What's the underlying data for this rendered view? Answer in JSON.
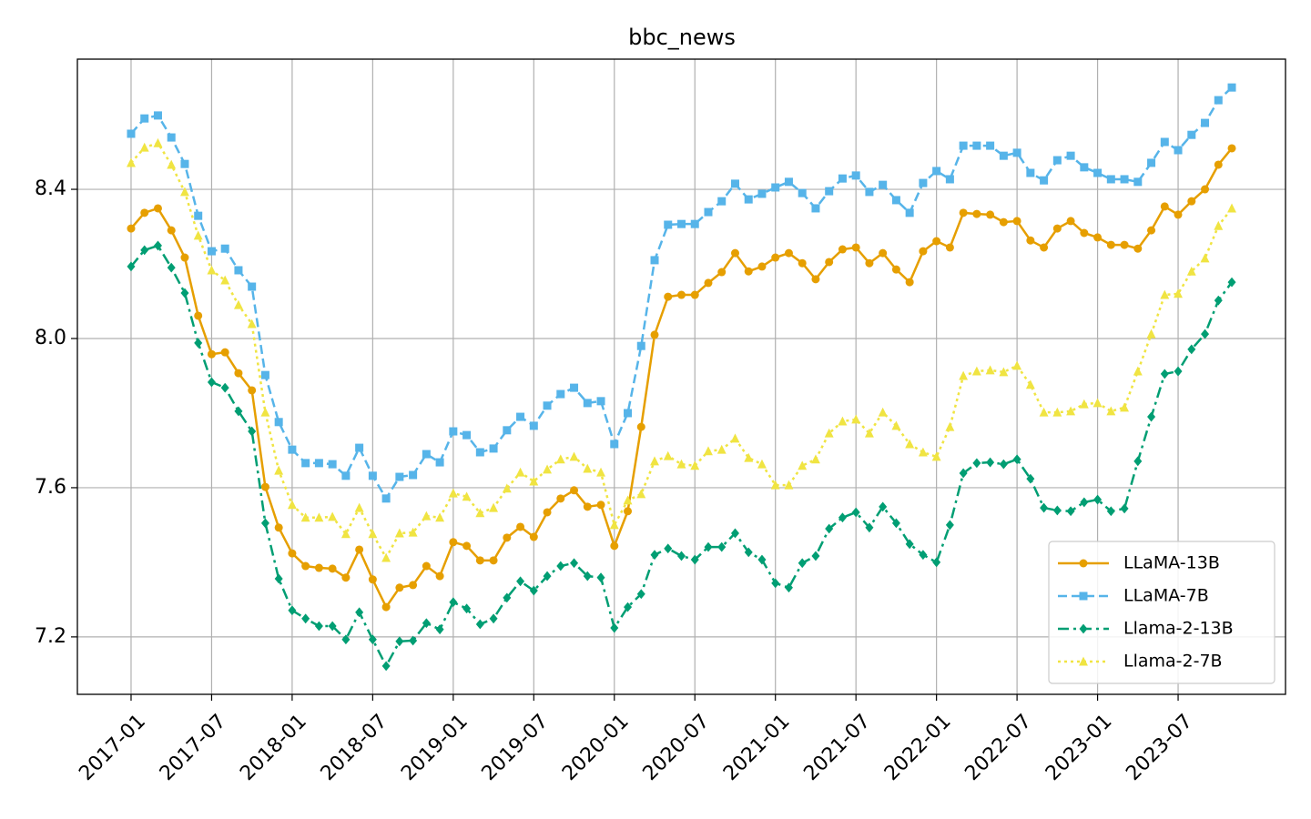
{
  "chart_data": {
    "type": "line",
    "title": "bbc_news",
    "x": [
      "2017-01",
      "2017-02",
      "2017-03",
      "2017-04",
      "2017-05",
      "2017-06",
      "2017-07",
      "2017-08",
      "2017-09",
      "2017-10",
      "2017-11",
      "2017-12",
      "2018-01",
      "2018-02",
      "2018-03",
      "2018-04",
      "2018-05",
      "2018-06",
      "2018-07",
      "2018-08",
      "2018-09",
      "2018-10",
      "2018-11",
      "2018-12",
      "2019-01",
      "2019-02",
      "2019-03",
      "2019-04",
      "2019-05",
      "2019-06",
      "2019-07",
      "2019-08",
      "2019-09",
      "2019-10",
      "2019-11",
      "2019-12",
      "2020-01",
      "2020-02",
      "2020-03",
      "2020-04",
      "2020-05",
      "2020-06",
      "2020-07",
      "2020-08",
      "2020-09",
      "2020-10",
      "2020-11",
      "2020-12",
      "2021-01",
      "2021-02",
      "2021-03",
      "2021-04",
      "2021-05",
      "2021-06",
      "2021-07",
      "2021-08",
      "2021-09",
      "2021-10",
      "2021-11",
      "2021-12",
      "2022-01",
      "2022-02",
      "2022-03",
      "2022-04",
      "2022-05",
      "2022-06",
      "2022-07",
      "2022-08",
      "2022-09",
      "2022-10",
      "2022-11",
      "2022-12",
      "2023-01",
      "2023-02",
      "2023-03",
      "2023-04",
      "2023-05",
      "2023-06",
      "2023-07",
      "2023-08",
      "2023-09",
      "2023-10",
      "2023-11"
    ],
    "series": [
      {
        "name": "LLaMA-13B",
        "color": "#e69f00",
        "marker": "circle",
        "linestyle": "solid",
        "values": [
          8.295,
          8.337,
          8.349,
          8.29,
          8.217,
          8.061,
          7.958,
          7.963,
          7.907,
          7.861,
          7.602,
          7.493,
          7.424,
          7.39,
          7.385,
          7.383,
          7.359,
          7.434,
          7.354,
          7.28,
          7.332,
          7.339,
          7.39,
          7.363,
          7.454,
          7.444,
          7.405,
          7.405,
          7.466,
          7.495,
          7.468,
          7.534,
          7.571,
          7.593,
          7.549,
          7.554,
          7.444,
          7.537,
          7.763,
          8.01,
          8.112,
          8.117,
          8.117,
          8.149,
          8.178,
          8.229,
          8.18,
          8.193,
          8.217,
          8.229,
          8.202,
          8.159,
          8.205,
          8.239,
          8.244,
          8.202,
          8.229,
          8.185,
          8.151,
          8.234,
          8.261,
          8.244,
          8.337,
          8.334,
          8.332,
          8.312,
          8.315,
          8.263,
          8.244,
          8.295,
          8.315,
          8.283,
          8.271,
          8.251,
          8.251,
          8.241,
          8.29,
          8.354,
          8.332,
          8.368,
          8.4,
          8.466,
          8.51
        ]
      },
      {
        "name": "LLaMA-7B",
        "color": "#56b4e9",
        "marker": "square",
        "linestyle": "dashed",
        "values": [
          8.549,
          8.59,
          8.598,
          8.539,
          8.468,
          8.329,
          8.234,
          8.241,
          8.183,
          8.139,
          7.902,
          7.776,
          7.702,
          7.666,
          7.666,
          7.663,
          7.632,
          7.707,
          7.632,
          7.571,
          7.629,
          7.634,
          7.69,
          7.668,
          7.751,
          7.741,
          7.695,
          7.705,
          7.754,
          7.79,
          7.766,
          7.82,
          7.851,
          7.868,
          7.827,
          7.832,
          7.717,
          7.8,
          7.98,
          8.21,
          8.305,
          8.307,
          8.307,
          8.339,
          8.368,
          8.415,
          8.373,
          8.388,
          8.405,
          8.42,
          8.39,
          8.349,
          8.395,
          8.429,
          8.437,
          8.393,
          8.412,
          8.371,
          8.337,
          8.417,
          8.449,
          8.427,
          8.517,
          8.517,
          8.517,
          8.49,
          8.498,
          8.444,
          8.424,
          8.478,
          8.49,
          8.459,
          8.444,
          8.427,
          8.427,
          8.42,
          8.471,
          8.527,
          8.505,
          8.546,
          8.578,
          8.639,
          8.673
        ]
      },
      {
        "name": "Llama-2-13B",
        "color": "#009e73",
        "marker": "diamond",
        "linestyle": "dashdot",
        "values": [
          8.193,
          8.237,
          8.249,
          8.19,
          8.122,
          7.988,
          7.883,
          7.868,
          7.805,
          7.751,
          7.505,
          7.356,
          7.271,
          7.249,
          7.229,
          7.229,
          7.193,
          7.266,
          7.193,
          7.122,
          7.188,
          7.19,
          7.237,
          7.22,
          7.293,
          7.276,
          7.234,
          7.249,
          7.305,
          7.349,
          7.324,
          7.363,
          7.39,
          7.398,
          7.363,
          7.359,
          7.224,
          7.28,
          7.315,
          7.42,
          7.437,
          7.417,
          7.407,
          7.441,
          7.441,
          7.478,
          7.427,
          7.407,
          7.344,
          7.332,
          7.398,
          7.417,
          7.49,
          7.52,
          7.534,
          7.493,
          7.549,
          7.505,
          7.449,
          7.42,
          7.4,
          7.5,
          7.639,
          7.666,
          7.668,
          7.663,
          7.676,
          7.624,
          7.546,
          7.539,
          7.537,
          7.561,
          7.568,
          7.537,
          7.544,
          7.671,
          7.79,
          7.905,
          7.912,
          7.971,
          8.012,
          8.102,
          8.151
        ]
      },
      {
        "name": "Llama-2-7B",
        "color": "#f0e442",
        "marker": "triangle",
        "linestyle": "dotted",
        "values": [
          8.471,
          8.512,
          8.524,
          8.466,
          8.393,
          8.276,
          8.183,
          8.156,
          8.09,
          8.039,
          7.802,
          7.646,
          7.554,
          7.52,
          7.52,
          7.522,
          7.476,
          7.546,
          7.476,
          7.412,
          7.478,
          7.48,
          7.524,
          7.52,
          7.585,
          7.576,
          7.532,
          7.546,
          7.598,
          7.641,
          7.617,
          7.649,
          7.676,
          7.683,
          7.651,
          7.641,
          7.5,
          7.566,
          7.583,
          7.671,
          7.685,
          7.663,
          7.659,
          7.698,
          7.702,
          7.732,
          7.68,
          7.663,
          7.607,
          7.607,
          7.659,
          7.676,
          7.746,
          7.778,
          7.783,
          7.746,
          7.802,
          7.766,
          7.717,
          7.695,
          7.683,
          7.763,
          7.9,
          7.912,
          7.915,
          7.91,
          7.927,
          7.876,
          7.802,
          7.802,
          7.805,
          7.824,
          7.827,
          7.805,
          7.815,
          7.912,
          8.012,
          8.117,
          8.12,
          8.18,
          8.215,
          8.302,
          8.349
        ]
      }
    ],
    "xlim": [
      "2016-09",
      "2024-03"
    ],
    "xticks": [
      "2017-01",
      "2017-07",
      "2018-01",
      "2018-07",
      "2019-01",
      "2019-07",
      "2020-01",
      "2020-07",
      "2021-01",
      "2021-07",
      "2022-01",
      "2022-07",
      "2023-01",
      "2023-07"
    ],
    "ylim": [
      7.046,
      8.749
    ],
    "yticks": [
      {
        "value": 7.2,
        "label": "7.2"
      },
      {
        "value": 7.6,
        "label": "7.6"
      },
      {
        "value": 8.0,
        "label": "8.0"
      },
      {
        "value": 8.4,
        "label": "8.4"
      }
    ],
    "grid": true,
    "legend": "lower right"
  }
}
